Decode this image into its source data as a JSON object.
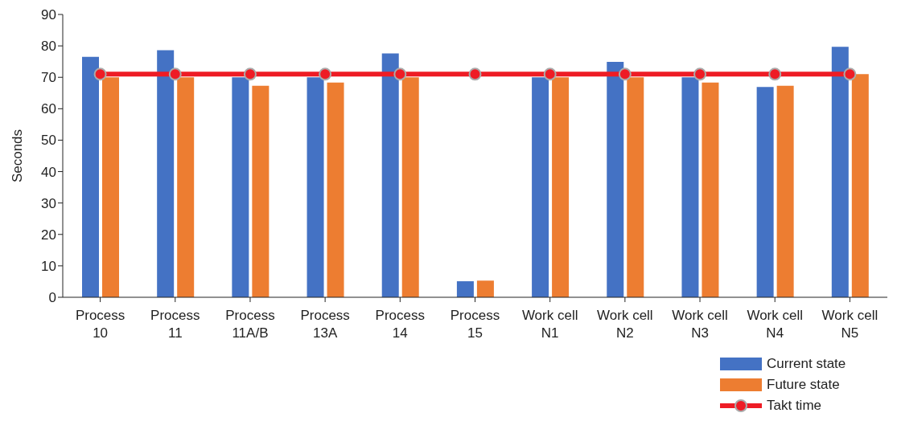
{
  "chart_data": {
    "type": "bar",
    "ylabel": "Seconds",
    "categories": [
      "Process 10",
      "Process 11",
      "Process 11A/B",
      "Process 13A",
      "Process 14",
      "Process 15",
      "Work cell N1",
      "Work cell N2",
      "Work cell N3",
      "Work cell N4",
      "Work cell N5"
    ],
    "series": [
      {
        "name": "Current state",
        "color": "#4472c4",
        "values": [
          76.5,
          78.6,
          70,
          70,
          77.6,
          5.1,
          70,
          74.9,
          70,
          66.9,
          79.7
        ]
      },
      {
        "name": "Future state",
        "color": "#ed7d31",
        "values": [
          70,
          70,
          67.3,
          68.3,
          70,
          5.3,
          70,
          70,
          68.3,
          67.3,
          71
        ]
      },
      {
        "name": "Takt time",
        "type": "line",
        "color": "#ee1c25",
        "marker": "circle",
        "values": [
          71,
          71,
          71,
          71,
          71,
          71,
          71,
          71,
          71,
          71,
          71
        ]
      }
    ],
    "ylim": [
      0,
      90
    ],
    "yticks": [
      0,
      10,
      20,
      30,
      40,
      50,
      60,
      70,
      80,
      90
    ],
    "grid": false,
    "legend": "bottom right"
  }
}
